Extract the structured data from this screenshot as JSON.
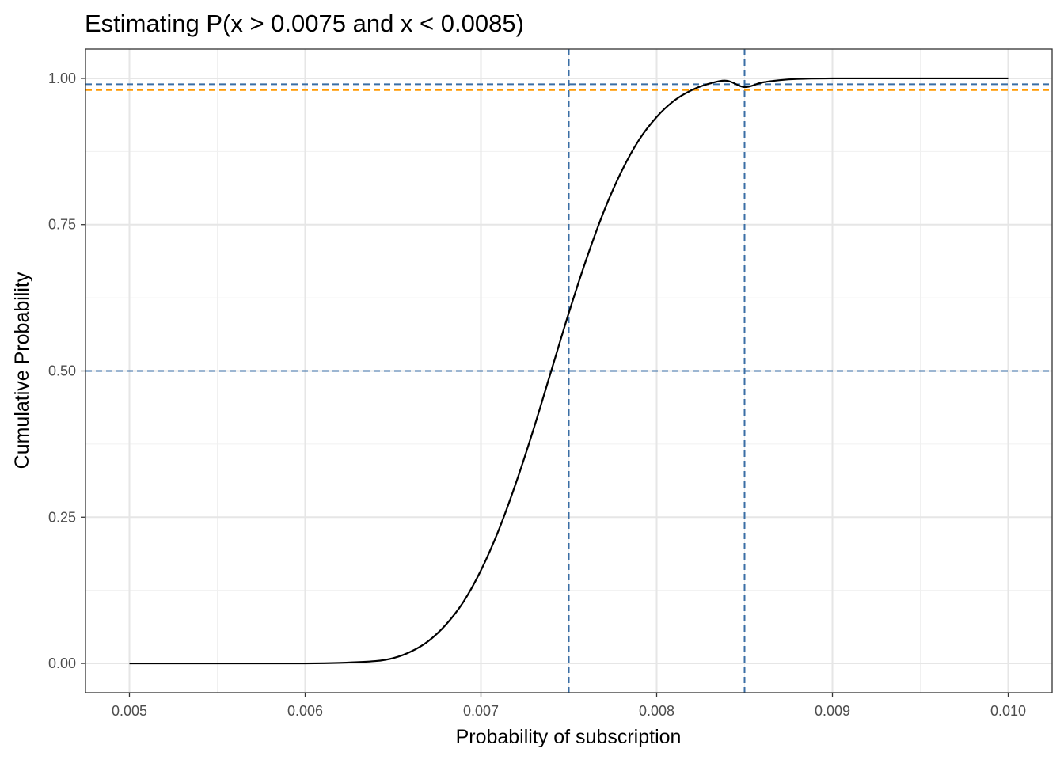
{
  "chart_data": {
    "type": "line",
    "title": "Estimating P(x > 0.0075 and x < 0.0085)",
    "xlabel": "Probability of subscription",
    "ylabel": "Cumulative Probability",
    "xlim": [
      0.00475,
      0.01025
    ],
    "ylim": [
      -0.05,
      1.05
    ],
    "x_ticks": [
      {
        "value": 0.005,
        "label": "0.005"
      },
      {
        "value": 0.006,
        "label": "0.006"
      },
      {
        "value": 0.007,
        "label": "0.007"
      },
      {
        "value": 0.008,
        "label": "0.008"
      },
      {
        "value": 0.009,
        "label": "0.009"
      },
      {
        "value": 0.01,
        "label": "0.010"
      }
    ],
    "y_ticks": [
      {
        "value": 0.0,
        "label": "0.00"
      },
      {
        "value": 0.25,
        "label": "0.25"
      },
      {
        "value": 0.5,
        "label": "0.50"
      },
      {
        "value": 0.75,
        "label": "0.75"
      },
      {
        "value": 1.0,
        "label": "1.00"
      }
    ],
    "grid": true,
    "series": [
      {
        "color": "#000000",
        "x": [
          0.005,
          0.0055,
          0.006,
          0.0062,
          0.0064,
          0.0065,
          0.0066,
          0.0067,
          0.0068,
          0.0069,
          0.007,
          0.0071,
          0.0072,
          0.0073,
          0.0074,
          0.0075,
          0.0076,
          0.0077,
          0.0078,
          0.0079,
          0.008,
          0.0081,
          0.0082,
          0.0083,
          0.0084,
          0.0085,
          0.0086,
          0.0087,
          0.0088,
          0.009,
          0.0095,
          0.01
        ],
        "y": [
          0.0,
          0.0,
          0.0,
          0.001,
          0.004,
          0.009,
          0.02,
          0.038,
          0.066,
          0.105,
          0.159,
          0.227,
          0.309,
          0.401,
          0.5,
          0.599,
          0.691,
          0.773,
          0.841,
          0.895,
          0.934,
          0.962,
          0.98,
          0.991,
          0.996,
          0.985,
          0.993,
          0.997,
          0.999,
          1.0,
          1.0,
          1.0
        ]
      }
    ],
    "reference_lines": [
      {
        "orientation": "vertical",
        "value": 0.0075,
        "color": "#3a6ea5",
        "style": "dashed"
      },
      {
        "orientation": "vertical",
        "value": 0.0085,
        "color": "#3a6ea5",
        "style": "dashed"
      },
      {
        "orientation": "horizontal",
        "value": 0.5,
        "color": "#3a6ea5",
        "style": "dashed"
      },
      {
        "orientation": "horizontal",
        "value": 0.99,
        "color": "#3a6ea5",
        "style": "dashed"
      },
      {
        "orientation": "horizontal",
        "value": 0.98,
        "color": "#ff9900",
        "style": "dashed"
      }
    ]
  }
}
